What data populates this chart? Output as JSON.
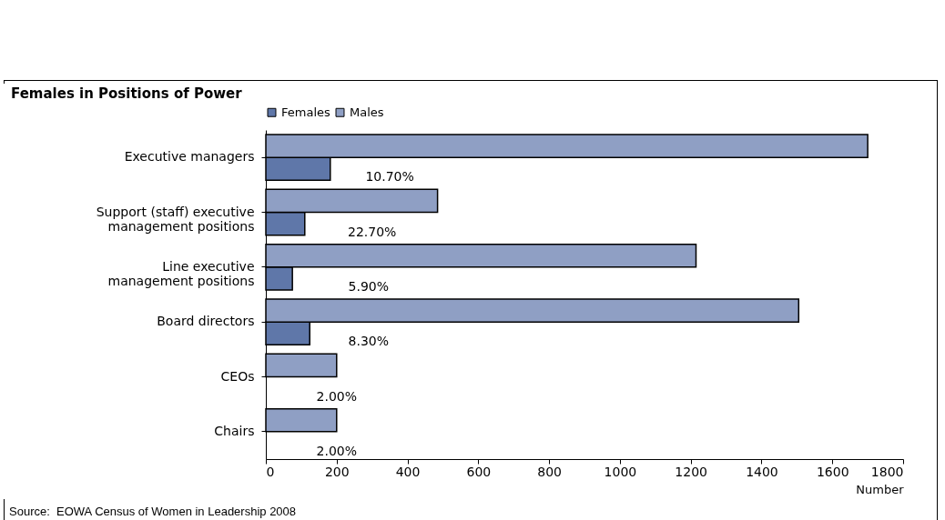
{
  "chart_data": {
    "type": "bar",
    "orientation": "horizontal",
    "title": "Females in Positions of Power",
    "xlabel": "Number",
    "categories": [
      "Executive managers",
      "Support (staff) executive management positions",
      "Line executive management positions",
      "Board directors",
      "CEOs",
      "Chairs"
    ],
    "series": [
      {
        "name": "Females",
        "color": "#5f77a9",
        "values": [
          182,
          110,
          75,
          124,
          null,
          null
        ]
      },
      {
        "name": "Males",
        "color": "#8f9fc4",
        "values": [
          1700,
          485,
          1215,
          1505,
          200,
          200
        ]
      }
    ],
    "xlim": [
      0,
      1800
    ],
    "xticks": [
      0,
      200,
      400,
      600,
      800,
      1000,
      1200,
      1400,
      1600,
      1800
    ],
    "grid": false,
    "legend": "top",
    "annotations": [
      {
        "text": "10.70%",
        "x": 350,
        "y": "Executive managers"
      },
      {
        "text": "22.70%",
        "x": 300,
        "y": "Support (staff) executive management positions"
      },
      {
        "text": "5.90%",
        "x": 290,
        "y": "Line executive management positions"
      },
      {
        "text": "8.30%",
        "x": 290,
        "y": "Board directors"
      },
      {
        "text": "2.00%",
        "x": 200,
        "y": "CEOs"
      },
      {
        "text": "2.00%",
        "x": 200,
        "y": "Chairs"
      },
      "Source:  EOWA Census of Women in Leadership 2008"
    ]
  }
}
